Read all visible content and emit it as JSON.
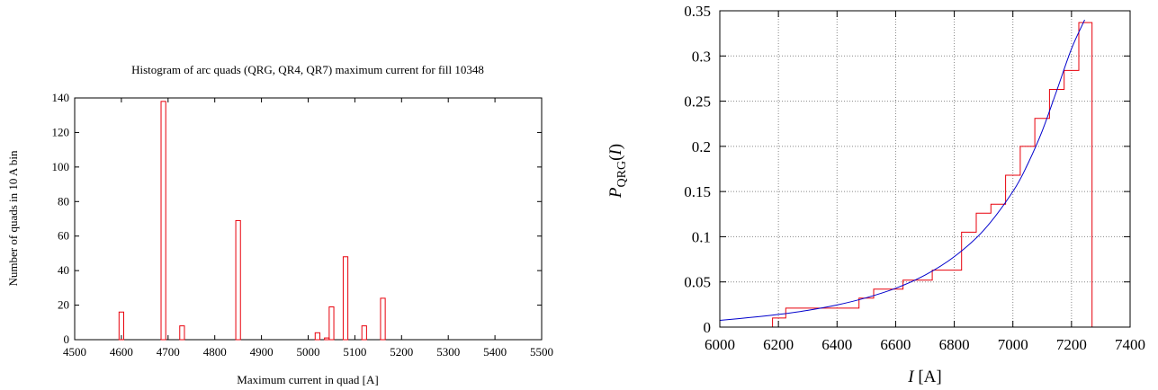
{
  "chart_data": [
    {
      "type": "bar",
      "title": "Histogram of arc quads (QRG, QR4, QR7) maximum current for fill 10348",
      "xlabel": "Maximum current in quad [A]",
      "ylabel": "Number of quads in 10 A bin",
      "xlim": [
        4500,
        5500
      ],
      "ylim": [
        0,
        140
      ],
      "xticks": [
        "4500",
        "4600",
        "4700",
        "4800",
        "4900",
        "5000",
        "5100",
        "5200",
        "5300",
        "5400",
        "5500"
      ],
      "yticks": [
        "0",
        "20",
        "40",
        "60",
        "80",
        "100",
        "120",
        "140"
      ],
      "bin_width": 10,
      "bars": [
        {
          "x": 4600,
          "value": 16
        },
        {
          "x": 4690,
          "value": 138
        },
        {
          "x": 4730,
          "value": 8
        },
        {
          "x": 4850,
          "value": 69
        },
        {
          "x": 5020,
          "value": 4
        },
        {
          "x": 5040,
          "value": 1
        },
        {
          "x": 5050,
          "value": 19
        },
        {
          "x": 5080,
          "value": 48
        },
        {
          "x": 5120,
          "value": 8
        },
        {
          "x": 5160,
          "value": 24
        }
      ],
      "bar_color": "#e8000b",
      "grid": false
    },
    {
      "type": "line",
      "title": "",
      "xlabel_italic": "I",
      "xlabel_rest": " [A]",
      "ylabel_main": "P",
      "ylabel_sub": "QRG",
      "ylabel_paren_open": "(",
      "ylabel_italic": "I",
      "ylabel_paren_close": ")",
      "xlim": [
        6000,
        7400
      ],
      "ylim": [
        0,
        0.35
      ],
      "xticks": [
        "6000",
        "6200",
        "6400",
        "6600",
        "6800",
        "7000",
        "7200",
        "7400"
      ],
      "yticks": [
        "0",
        "0.05",
        "0.1",
        "0.15",
        "0.2",
        "0.25",
        "0.3",
        "0.35"
      ],
      "grid": true,
      "series": [
        {
          "style": "step",
          "color": "#e8000b",
          "points": [
            [
              6180,
              0
            ],
            [
              6180,
              0.01
            ],
            [
              6225,
              0.01
            ],
            [
              6225,
              0.021
            ],
            [
              6475,
              0.021
            ],
            [
              6475,
              0.032
            ],
            [
              6525,
              0.032
            ],
            [
              6525,
              0.042
            ],
            [
              6625,
              0.042
            ],
            [
              6625,
              0.052
            ],
            [
              6725,
              0.052
            ],
            [
              6725,
              0.063
            ],
            [
              6825,
              0.063
            ],
            [
              6825,
              0.105
            ],
            [
              6875,
              0.105
            ],
            [
              6875,
              0.126
            ],
            [
              6925,
              0.126
            ],
            [
              6925,
              0.136
            ],
            [
              6975,
              0.136
            ],
            [
              6975,
              0.168
            ],
            [
              7025,
              0.168
            ],
            [
              7025,
              0.2
            ],
            [
              7075,
              0.2
            ],
            [
              7075,
              0.231
            ],
            [
              7125,
              0.231
            ],
            [
              7125,
              0.263
            ],
            [
              7175,
              0.263
            ],
            [
              7175,
              0.284
            ],
            [
              7225,
              0.284
            ],
            [
              7225,
              0.337
            ],
            [
              7270,
              0.337
            ],
            [
              7270,
              0
            ]
          ]
        },
        {
          "style": "curve",
          "color": "#0000cc",
          "points": [
            [
              6000,
              0.0075
            ],
            [
              6100,
              0.0105
            ],
            [
              6200,
              0.014
            ],
            [
              6300,
              0.0185
            ],
            [
              6400,
              0.0245
            ],
            [
              6500,
              0.0325
            ],
            [
              6600,
              0.043
            ],
            [
              6700,
              0.0575
            ],
            [
              6800,
              0.078
            ],
            [
              6900,
              0.107
            ],
            [
              7000,
              0.15
            ],
            [
              7050,
              0.18
            ],
            [
              7100,
              0.217
            ],
            [
              7150,
              0.262
            ],
            [
              7200,
              0.308
            ],
            [
              7245,
              0.34
            ]
          ]
        }
      ]
    }
  ]
}
